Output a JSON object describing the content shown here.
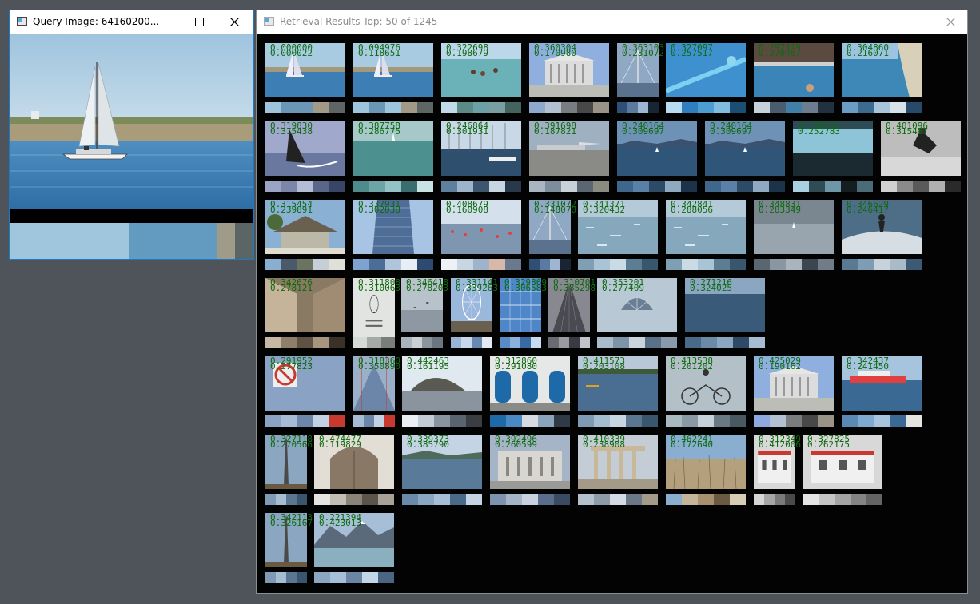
{
  "query_window": {
    "title": "Query Image: 64160200...",
    "palette": [
      "#9fc6dd",
      "#9fc6dd",
      "#639ac0",
      "#a09a88",
      "#5b6566"
    ]
  },
  "results_window": {
    "title": "Retrieval Results Top: 50 of 1245"
  },
  "results": [
    {
      "s1": "0.000000",
      "s2": "0.000022",
      "scene": "sailboat",
      "pal": [
        "#9ec5dc",
        "#6c96b6",
        "#6c96b6",
        "#a29a86",
        "#5d6565"
      ]
    },
    {
      "s1": "0.094976",
      "s2": "0.118651",
      "scene": "sailboat",
      "pal": [
        "#9ec5dc",
        "#6c96b6",
        "#9ec5dc",
        "#a29a86",
        "#5d6565"
      ]
    },
    {
      "s1": "0.322698",
      "s2": "0.198679",
      "scene": "swim",
      "pal": [
        "#c2dae8",
        "#5d8a86",
        "#6d9fa6",
        "#7a9da2",
        "#44625e"
      ]
    },
    {
      "s1": "0.360304",
      "s2": "0.170980",
      "scene": "court",
      "pal": [
        "#8ea9cc",
        "#b2c0d2",
        "#7a7d7f",
        "#484848",
        "#9a9488"
      ]
    },
    {
      "s1": "0.363103",
      "s2": "0.231072",
      "scene": "pier",
      "pal": [
        "#2f4f76",
        "#5b7aa0",
        "#9fb6d2",
        "#1a2534"
      ]
    },
    {
      "s1": "0.327097",
      "s2": "0.257517",
      "scene": "rail",
      "pal": [
        "#b8dcf0",
        "#2f7fc0",
        "#4c9ed2",
        "#80bbe0",
        "#1c4d72"
      ]
    },
    {
      "s1": "0.297319",
      "s2": "0.270467",
      "scene": "pool",
      "pal": [
        "#c6d2da",
        "#4a5c6e",
        "#3f7fa8",
        "#6b7d8e",
        "#223140"
      ]
    },
    {
      "s1": "0.304860",
      "s2": "0.216071",
      "scene": "beach",
      "pal": [
        "#6a9cc4",
        "#3d6b8f",
        "#a9c5da",
        "#d7e1e7",
        "#28496a"
      ]
    },
    {
      "s1": "0.319830",
      "s2": "0.315438",
      "scene": "windsurf",
      "pal": [
        "#9aa5c6",
        "#7b86a8",
        "#b4bcd6",
        "#5a6688",
        "#3a4466"
      ]
    },
    {
      "s1": "0.387758",
      "s2": "0.286775",
      "scene": "sea",
      "pal": [
        "#4d8b8c",
        "#6da4a6",
        "#93c3c4",
        "#3a6d6e",
        "#c9e3e4"
      ]
    },
    {
      "s1": "0.246864",
      "s2": "0.301931",
      "scene": "marina",
      "pal": [
        "#5f7f9f",
        "#9cb5cb",
        "#3c5670",
        "#c8d6e2",
        "#28394b"
      ]
    },
    {
      "s1": "0.391698",
      "s2": "0.187821",
      "scene": "airport",
      "pal": [
        "#a9b6c2",
        "#7d8d9b",
        "#c9d1d8",
        "#5a6773",
        "#8b8b80"
      ]
    },
    {
      "s1": "0.240164",
      "s2": "0.309697",
      "scene": "lake",
      "pal": [
        "#3f678c",
        "#5a80a5",
        "#2d4a66",
        "#8fa9c0",
        "#1d3349"
      ]
    },
    {
      "s1": "0.240164",
      "s2": "0.309697",
      "scene": "lake",
      "pal": [
        "#3f678c",
        "#5a80a5",
        "#2d4a66",
        "#8fa9c0",
        "#1d3349"
      ]
    },
    {
      "s1": "0.298917",
      "s2": "0.252783",
      "scene": "teal",
      "pal": [
        "#a9cfe0",
        "#2f4c55",
        "#6f96a6",
        "#151d21",
        "#4b6b78"
      ]
    },
    {
      "s1": "0.401096",
      "s2": "0.315487",
      "scene": "bw",
      "pal": [
        "#d0d0d0",
        "#8a8a8a",
        "#5a5a5a",
        "#b0b0b0",
        "#2a2a2a"
      ]
    },
    {
      "s1": "0.315454",
      "s2": "0.239891",
      "scene": "hut",
      "pal": [
        "#8aaed0",
        "#4b5a6a",
        "#6b7460",
        "#c4cfd8",
        "#e0e0d8"
      ]
    },
    {
      "s1": "0.337931",
      "s2": "0.302038",
      "scene": "tower",
      "pal": [
        "#7ea3cf",
        "#4b6d98",
        "#b0c4dc",
        "#e8eef6",
        "#2e4a70"
      ]
    },
    {
      "s1": "0.408679",
      "s2": "0.160908",
      "scene": "crowd",
      "pal": [
        "#eef2f6",
        "#c8d6e4",
        "#9fb4ca",
        "#d8b8a8",
        "#6a7a8e"
      ]
    },
    {
      "s1": "0.331072",
      "s2": "0.148070",
      "scene": "pier",
      "pal": [
        "#2f4f76",
        "#5b7aa0",
        "#9fb6d2",
        "#1a2534"
      ]
    },
    {
      "s1": "0.341371",
      "s2": "0.320432",
      "scene": "ice",
      "pal": [
        "#7e9fb4",
        "#a9c4d4",
        "#c9dce6",
        "#5c7e94",
        "#38576e"
      ]
    },
    {
      "s1": "0.342841",
      "s2": "0.288056",
      "scene": "ice",
      "pal": [
        "#7e9fb4",
        "#c9dce6",
        "#a9c4d4",
        "#5c7e94",
        "#38576e"
      ]
    },
    {
      "s1": "0.348831",
      "s2": "0.283349",
      "scene": "grey",
      "pal": [
        "#5a6670",
        "#8a96a0",
        "#aab4bc",
        "#3c4650",
        "#707c86"
      ]
    },
    {
      "s1": "0.346629",
      "s2": "0.246417",
      "scene": "surf",
      "pal": [
        "#5a7a94",
        "#7e9cb4",
        "#c8d2da",
        "#a9bac8",
        "#3c5a74"
      ]
    },
    {
      "s1": "0.342676",
      "s2": "0.278121",
      "scene": "alley",
      "pal": [
        "#c6b8a4",
        "#8f7e6a",
        "#5e5244",
        "#a89580",
        "#3a3228"
      ]
    },
    {
      "s1": "0.311808",
      "s2": "0.310063",
      "scene": "paper",
      "pal": [
        "#d6dad6",
        "#a6aaa6",
        "#7a7e7a"
      ]
    },
    {
      "s1": "0.346418",
      "s2": "0.278203",
      "scene": "fog",
      "pal": [
        "#aab4bc",
        "#c8d0d6",
        "#8a949c",
        "#6c7680"
      ]
    },
    {
      "s1": "0.331141",
      "s2": "0.339263",
      "scene": "wheel",
      "pal": [
        "#9ab4d4",
        "#c8d8ea",
        "#6888b0",
        "#e2eaf4"
      ]
    },
    {
      "s1": "0.329869",
      "s2": "0.306583",
      "scene": "glass",
      "pal": [
        "#5a8ac4",
        "#8ab0dc",
        "#3a6aa4",
        "#c8dcf0"
      ]
    },
    {
      "s1": "0.310701",
      "s2": "0.385298",
      "scene": "cone",
      "pal": [
        "#6a6a72",
        "#9a9aa2",
        "#3a3a42",
        "#c2c2ca"
      ]
    },
    {
      "s1": "0.353201",
      "s2": "0.277409",
      "scene": "shell",
      "pal": [
        "#a9bccc",
        "#7d94a8",
        "#c9d4dc",
        "#5a7086",
        "#8a9aaa"
      ]
    },
    {
      "s1": "0.271216",
      "s2": "0.324025",
      "scene": "water",
      "pal": [
        "#4a6a8a",
        "#6a8aa8",
        "#8aa6c0",
        "#2e4a66",
        "#a6bcd0"
      ]
    },
    {
      "s1": "0.291952",
      "s2": "0.277823",
      "scene": "nopark",
      "pal": [
        "#8aa2c4",
        "#a6bcd6",
        "#6c86aa",
        "#c2d2e4",
        "#c83a30"
      ]
    },
    {
      "s1": "0.318360",
      "s2": "0.350890",
      "scene": "bridge",
      "pal": [
        "#a6bcd6",
        "#6c86aa",
        "#c2d2e4",
        "#c83a30"
      ]
    },
    {
      "s1": "0.442463",
      "s2": "0.161195",
      "scene": "rock",
      "pal": [
        "#e8eef4",
        "#c2ccd6",
        "#8a949e",
        "#5a646e",
        "#3a3e42"
      ]
    },
    {
      "s1": "0.312860",
      "s2": "0.291080",
      "scene": "doors",
      "pal": [
        "#1e6aa8",
        "#4a8ac4",
        "#d4dce2",
        "#8aa4bc",
        "#2e3a46"
      ]
    },
    {
      "s1": "0.411573",
      "s2": "0.203108",
      "scene": "kayak",
      "pal": [
        "#7e9ab4",
        "#a6bcd0",
        "#c8d6e2",
        "#5a7690",
        "#3a566e"
      ]
    },
    {
      "s1": "0.413538",
      "s2": "0.201202",
      "scene": "bike",
      "pal": [
        "#aab8c0",
        "#8a9aa4",
        "#c6d2da",
        "#6a7a84",
        "#4a5862"
      ]
    },
    {
      "s1": "0.425029",
      "s2": "0.190162",
      "scene": "court",
      "pal": [
        "#8ea9e0",
        "#b2c0d2",
        "#7a7d7f",
        "#484848",
        "#9a9488"
      ]
    },
    {
      "s1": "0.342437",
      "s2": "0.241450",
      "scene": "boat",
      "pal": [
        "#5a8ab4",
        "#7eaad0",
        "#a6c4de",
        "#3a6a94",
        "#e4e4e0"
      ]
    },
    {
      "s1": "0.327118",
      "s2": "0.270566",
      "scene": "obelisk",
      "pal": [
        "#7e9ab4",
        "#a6bcd0",
        "#5a7690",
        "#3a566e"
      ]
    },
    {
      "s1": "0.474477",
      "s2": "0.119829",
      "scene": "arch",
      "pal": [
        "#e6e4e0",
        "#c2beb6",
        "#8a8478",
        "#5a544a",
        "#a8a296"
      ]
    },
    {
      "s1": "0.339373",
      "s2": "0.385790",
      "scene": "river",
      "pal": [
        "#6a8aaa",
        "#8aa6c2",
        "#a6bed6",
        "#4a6a8a",
        "#c4d4e4"
      ]
    },
    {
      "s1": "0.392496",
      "s2": "0.260599",
      "scene": "palace",
      "pal": [
        "#7e92b0",
        "#a6b4c8",
        "#c8d2de",
        "#5a6e8c",
        "#3a4a62"
      ]
    },
    {
      "s1": "0.410339",
      "s2": "0.238908",
      "scene": "ruins",
      "pal": [
        "#b4c0cc",
        "#8e9caa",
        "#d4dbe2",
        "#6a7888",
        "#a49a88"
      ]
    },
    {
      "s1": "0.462241",
      "s2": "0.172640",
      "scene": "grass",
      "pal": [
        "#8aaed0",
        "#c4b49a",
        "#a6906e",
        "#6a5a42",
        "#d8ccb4"
      ]
    },
    {
      "s1": "0.312349",
      "s2": "0.412006",
      "scene": "house",
      "pal": [
        "#d6d6d6",
        "#a6a6a6",
        "#7a7a7a",
        "#4a4a4a"
      ]
    },
    {
      "s1": "0.327825",
      "s2": "0.262175",
      "scene": "house",
      "pal": [
        "#e4e4e4",
        "#c4c4c4",
        "#a4a4a4",
        "#848484",
        "#646464"
      ]
    },
    {
      "s1": "0.342113",
      "s2": "0.326167",
      "scene": "obelisk",
      "pal": [
        "#7e9ab4",
        "#a6bcd0",
        "#5a7690",
        "#3a566e"
      ]
    },
    {
      "s1": "0.221394",
      "s2": "0.423013",
      "scene": "mountain",
      "pal": [
        "#8aa6c0",
        "#a6bed6",
        "#6a86a2",
        "#c4d6e6",
        "#4a6682"
      ]
    }
  ]
}
